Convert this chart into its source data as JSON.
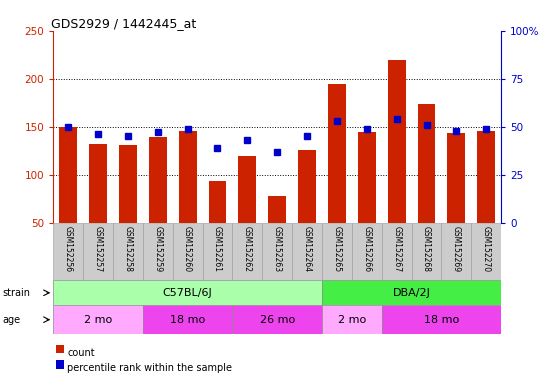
{
  "title": "GDS2929 / 1442445_at",
  "samples": [
    "GSM152256",
    "GSM152257",
    "GSM152258",
    "GSM152259",
    "GSM152260",
    "GSM152261",
    "GSM152262",
    "GSM152263",
    "GSM152264",
    "GSM152265",
    "GSM152266",
    "GSM152267",
    "GSM152268",
    "GSM152269",
    "GSM152270"
  ],
  "counts": [
    150,
    132,
    131,
    139,
    146,
    93,
    120,
    78,
    126,
    195,
    145,
    220,
    174,
    143,
    146
  ],
  "percentiles": [
    50,
    46,
    45,
    47,
    49,
    39,
    43,
    37,
    45,
    53,
    49,
    54,
    51,
    48,
    49
  ],
  "ylim_left": [
    50,
    250
  ],
  "ylim_right": [
    0,
    100
  ],
  "yticks_left": [
    50,
    100,
    150,
    200,
    250
  ],
  "yticks_right": [
    0,
    25,
    50,
    75,
    100
  ],
  "hlines": [
    100,
    150,
    200
  ],
  "strain_groups": [
    {
      "label": "C57BL/6J",
      "start": 0,
      "end": 9,
      "color": "#AAFFAA"
    },
    {
      "label": "DBA/2J",
      "start": 9,
      "end": 15,
      "color": "#44EE44"
    }
  ],
  "age_groups": [
    {
      "label": "2 mo",
      "start": 0,
      "end": 3,
      "color": "#FFAAFF"
    },
    {
      "label": "18 mo",
      "start": 3,
      "end": 6,
      "color": "#EE44EE"
    },
    {
      "label": "26 mo",
      "start": 6,
      "end": 9,
      "color": "#EE44EE"
    },
    {
      "label": "2 mo",
      "start": 9,
      "end": 11,
      "color": "#FFAAFF"
    },
    {
      "label": "18 mo",
      "start": 11,
      "end": 15,
      "color": "#EE44EE"
    }
  ],
  "bar_color": "#CC2200",
  "dot_color": "#0000CC",
  "left_axis_color": "#CC2200",
  "right_axis_color": "#0000CC",
  "background_color": "#FFFFFF",
  "label_bg_color": "#CCCCCC",
  "legend_items": [
    {
      "label": "count",
      "color": "#CC2200"
    },
    {
      "label": "percentile rank within the sample",
      "color": "#0000CC"
    }
  ]
}
